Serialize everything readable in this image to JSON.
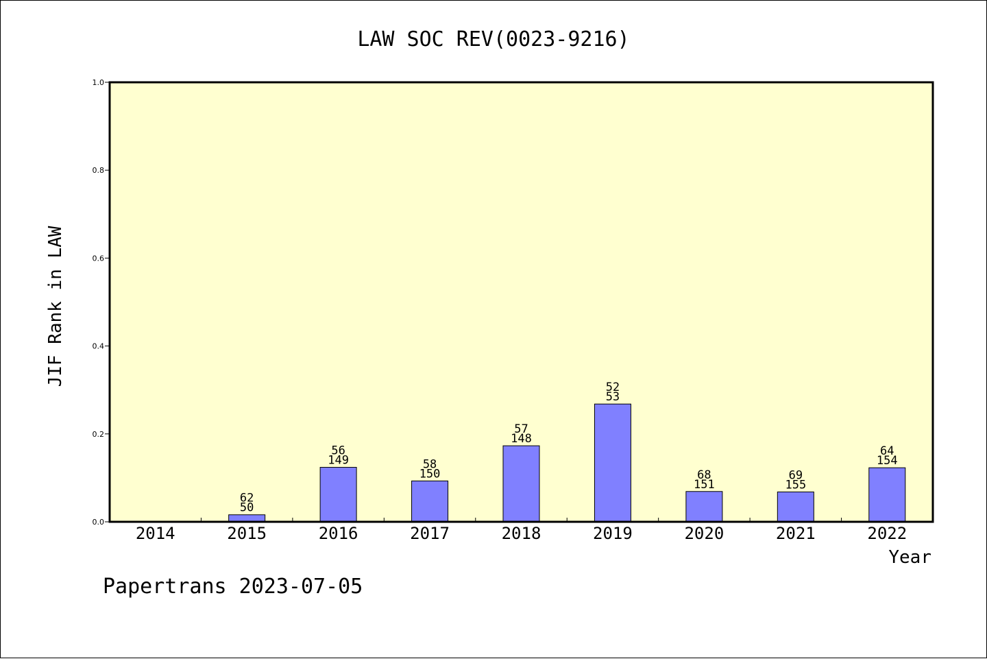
{
  "colors": {
    "plot_background": "#ffffd0",
    "bar_fill": "#8080ff",
    "bar_stroke": "#000000",
    "axis": "#000000"
  },
  "footer": {
    "text": "Papertrans 2023-07-05"
  },
  "chart_data": {
    "type": "bar",
    "title": "LAW SOC REV(0023-9216)",
    "xlabel": "Year",
    "ylabel": "JIF Rank in LAW",
    "ylim": [
      0,
      1.0
    ],
    "yticks": [
      "0.0",
      "0.2",
      "0.4",
      "0.6",
      "0.8",
      "1.0"
    ],
    "categories": [
      "2014",
      "2015",
      "2016",
      "2017",
      "2018",
      "2019",
      "2020",
      "2021",
      "2022"
    ],
    "values": [
      null,
      0.016,
      0.124,
      0.093,
      0.173,
      0.268,
      0.069,
      0.068,
      0.123
    ],
    "rank_labels": [
      "",
      "62",
      "56",
      "58",
      "57",
      "52",
      "68",
      "69",
      "64"
    ],
    "total_labels": [
      "",
      "50",
      "149",
      "150",
      "148",
      "53",
      "151",
      "155",
      "154"
    ],
    "grid": false,
    "legend": "none"
  }
}
